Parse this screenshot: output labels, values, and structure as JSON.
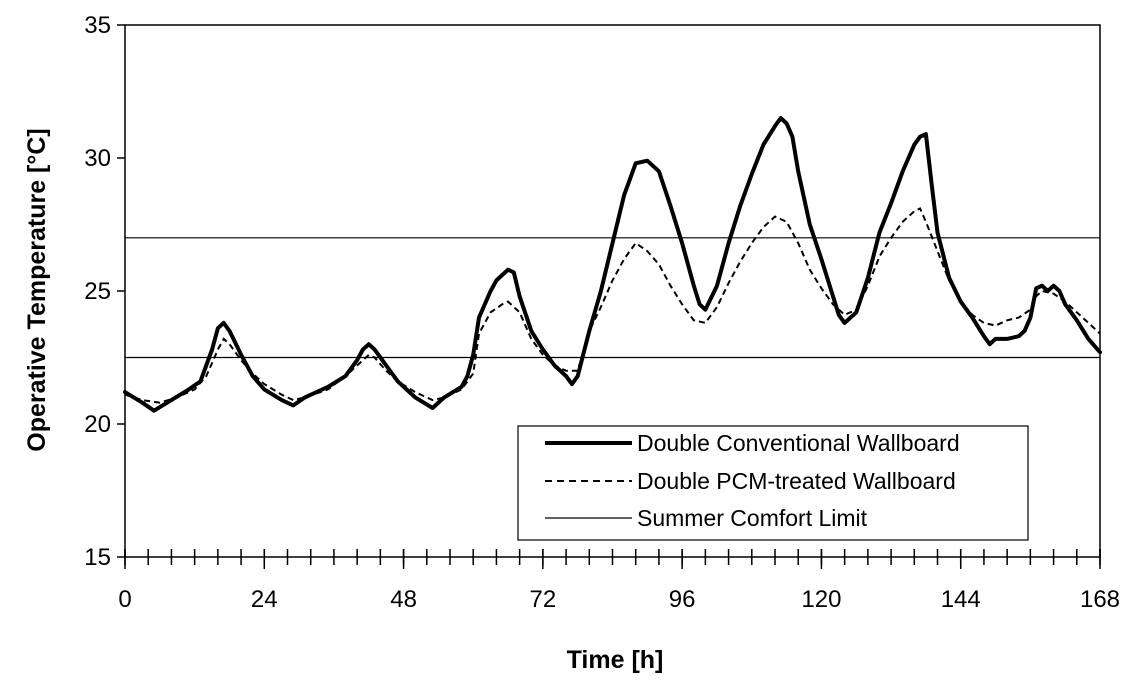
{
  "chart_data": {
    "type": "line",
    "title": "",
    "xlabel": "Time [h]",
    "ylabel": "Operative Temperature [°C]",
    "xlim": [
      0,
      168
    ],
    "ylim": [
      15,
      35
    ],
    "x_ticks": [
      0,
      24,
      48,
      72,
      96,
      120,
      144,
      168
    ],
    "x_tick_labels": [
      "0",
      "24",
      "48",
      "72",
      "96",
      "120",
      "144",
      "168"
    ],
    "x_minor_step": 4,
    "y_ticks": [
      15,
      20,
      25,
      30,
      35
    ],
    "y_tick_labels": [
      "15",
      "20",
      "25",
      "30",
      "35"
    ],
    "grid": false,
    "legend_position": "bottom-right",
    "series": [
      {
        "name": "Double Conventional Wallboard",
        "style": "thick-solid",
        "color": "#000000",
        "points": [
          [
            0,
            21.2
          ],
          [
            3,
            20.8
          ],
          [
            5,
            20.5
          ],
          [
            8,
            20.9
          ],
          [
            11,
            21.3
          ],
          [
            13,
            21.6
          ],
          [
            15,
            22.8
          ],
          [
            16,
            23.6
          ],
          [
            17,
            23.8
          ],
          [
            18,
            23.5
          ],
          [
            20,
            22.6
          ],
          [
            22,
            21.8
          ],
          [
            24,
            21.3
          ],
          [
            27,
            20.9
          ],
          [
            29,
            20.7
          ],
          [
            31,
            21.0
          ],
          [
            35,
            21.4
          ],
          [
            38,
            21.8
          ],
          [
            40,
            22.4
          ],
          [
            41,
            22.8
          ],
          [
            42,
            23.0
          ],
          [
            43,
            22.8
          ],
          [
            45,
            22.2
          ],
          [
            47,
            21.6
          ],
          [
            50,
            21.0
          ],
          [
            53,
            20.6
          ],
          [
            55,
            21.0
          ],
          [
            58,
            21.4
          ],
          [
            59,
            21.8
          ],
          [
            60,
            22.6
          ],
          [
            61,
            24.0
          ],
          [
            63,
            25.0
          ],
          [
            64,
            25.4
          ],
          [
            66,
            25.8
          ],
          [
            67,
            25.7
          ],
          [
            68,
            24.8
          ],
          [
            70,
            23.5
          ],
          [
            72,
            22.8
          ],
          [
            74,
            22.2
          ],
          [
            76,
            21.8
          ],
          [
            77,
            21.5
          ],
          [
            78,
            21.8
          ],
          [
            80,
            23.5
          ],
          [
            82,
            25.0
          ],
          [
            84,
            26.8
          ],
          [
            86,
            28.6
          ],
          [
            88,
            29.8
          ],
          [
            90,
            29.9
          ],
          [
            92,
            29.5
          ],
          [
            94,
            28.2
          ],
          [
            96,
            26.8
          ],
          [
            98,
            25.2
          ],
          [
            99,
            24.5
          ],
          [
            100,
            24.3
          ],
          [
            102,
            25.2
          ],
          [
            104,
            26.8
          ],
          [
            106,
            28.2
          ],
          [
            108,
            29.4
          ],
          [
            110,
            30.5
          ],
          [
            112,
            31.2
          ],
          [
            113,
            31.5
          ],
          [
            114,
            31.3
          ],
          [
            115,
            30.8
          ],
          [
            116,
            29.5
          ],
          [
            118,
            27.5
          ],
          [
            120,
            26.2
          ],
          [
            122,
            24.8
          ],
          [
            123,
            24.1
          ],
          [
            124,
            23.8
          ],
          [
            126,
            24.2
          ],
          [
            128,
            25.5
          ],
          [
            130,
            27.2
          ],
          [
            132,
            28.3
          ],
          [
            134,
            29.5
          ],
          [
            136,
            30.5
          ],
          [
            137,
            30.8
          ],
          [
            138,
            30.9
          ],
          [
            139,
            29.0
          ],
          [
            140,
            27.2
          ],
          [
            142,
            25.5
          ],
          [
            144,
            24.6
          ],
          [
            146,
            24.0
          ],
          [
            148,
            23.3
          ],
          [
            149,
            23.0
          ],
          [
            150,
            23.2
          ],
          [
            152,
            23.2
          ],
          [
            154,
            23.3
          ],
          [
            155,
            23.5
          ],
          [
            156,
            24.0
          ],
          [
            157,
            25.1
          ],
          [
            158,
            25.2
          ],
          [
            159,
            25.0
          ],
          [
            160,
            25.2
          ],
          [
            161,
            25.0
          ],
          [
            162,
            24.5
          ],
          [
            164,
            23.9
          ],
          [
            166,
            23.2
          ],
          [
            168,
            22.7
          ]
        ]
      },
      {
        "name": "Double PCM-treated Wallboard",
        "style": "dashed",
        "color": "#000000",
        "points": [
          [
            0,
            21.1
          ],
          [
            3,
            20.9
          ],
          [
            6,
            20.8
          ],
          [
            9,
            21.0
          ],
          [
            12,
            21.3
          ],
          [
            14,
            21.8
          ],
          [
            16,
            22.8
          ],
          [
            17,
            23.2
          ],
          [
            18,
            23.0
          ],
          [
            20,
            22.4
          ],
          [
            22,
            21.9
          ],
          [
            24,
            21.5
          ],
          [
            27,
            21.1
          ],
          [
            29,
            20.9
          ],
          [
            31,
            21.0
          ],
          [
            35,
            21.3
          ],
          [
            38,
            21.8
          ],
          [
            40,
            22.2
          ],
          [
            42,
            22.6
          ],
          [
            43,
            22.5
          ],
          [
            45,
            22.0
          ],
          [
            47,
            21.6
          ],
          [
            50,
            21.2
          ],
          [
            53,
            20.9
          ],
          [
            55,
            21.0
          ],
          [
            58,
            21.3
          ],
          [
            60,
            21.9
          ],
          [
            61,
            23.4
          ],
          [
            63,
            24.2
          ],
          [
            65,
            24.5
          ],
          [
            66,
            24.6
          ],
          [
            68,
            24.2
          ],
          [
            70,
            23.2
          ],
          [
            72,
            22.6
          ],
          [
            74,
            22.2
          ],
          [
            76,
            22.0
          ],
          [
            78,
            22.0
          ],
          [
            80,
            23.5
          ],
          [
            82,
            24.4
          ],
          [
            84,
            25.4
          ],
          [
            86,
            26.2
          ],
          [
            88,
            26.8
          ],
          [
            90,
            26.5
          ],
          [
            92,
            26.0
          ],
          [
            94,
            25.2
          ],
          [
            96,
            24.5
          ],
          [
            98,
            23.9
          ],
          [
            100,
            23.8
          ],
          [
            102,
            24.4
          ],
          [
            104,
            25.3
          ],
          [
            106,
            26.1
          ],
          [
            108,
            26.8
          ],
          [
            110,
            27.4
          ],
          [
            112,
            27.8
          ],
          [
            114,
            27.6
          ],
          [
            116,
            26.8
          ],
          [
            118,
            25.8
          ],
          [
            120,
            25.1
          ],
          [
            122,
            24.5
          ],
          [
            124,
            24.1
          ],
          [
            126,
            24.3
          ],
          [
            128,
            25.2
          ],
          [
            130,
            26.3
          ],
          [
            132,
            27.0
          ],
          [
            134,
            27.6
          ],
          [
            136,
            28.0
          ],
          [
            137,
            28.1
          ],
          [
            138,
            27.6
          ],
          [
            140,
            26.5
          ],
          [
            142,
            25.4
          ],
          [
            144,
            24.6
          ],
          [
            146,
            24.1
          ],
          [
            148,
            23.8
          ],
          [
            150,
            23.7
          ],
          [
            152,
            23.9
          ],
          [
            154,
            24.0
          ],
          [
            156,
            24.3
          ],
          [
            157,
            24.8
          ],
          [
            158,
            25.0
          ],
          [
            160,
            24.9
          ],
          [
            162,
            24.6
          ],
          [
            164,
            24.2
          ],
          [
            166,
            23.8
          ],
          [
            168,
            23.4
          ]
        ]
      },
      {
        "name": "Summer Comfort Limit",
        "style": "thin-solid",
        "color": "#000000",
        "lines": [
          22.5,
          27.0
        ]
      }
    ]
  }
}
